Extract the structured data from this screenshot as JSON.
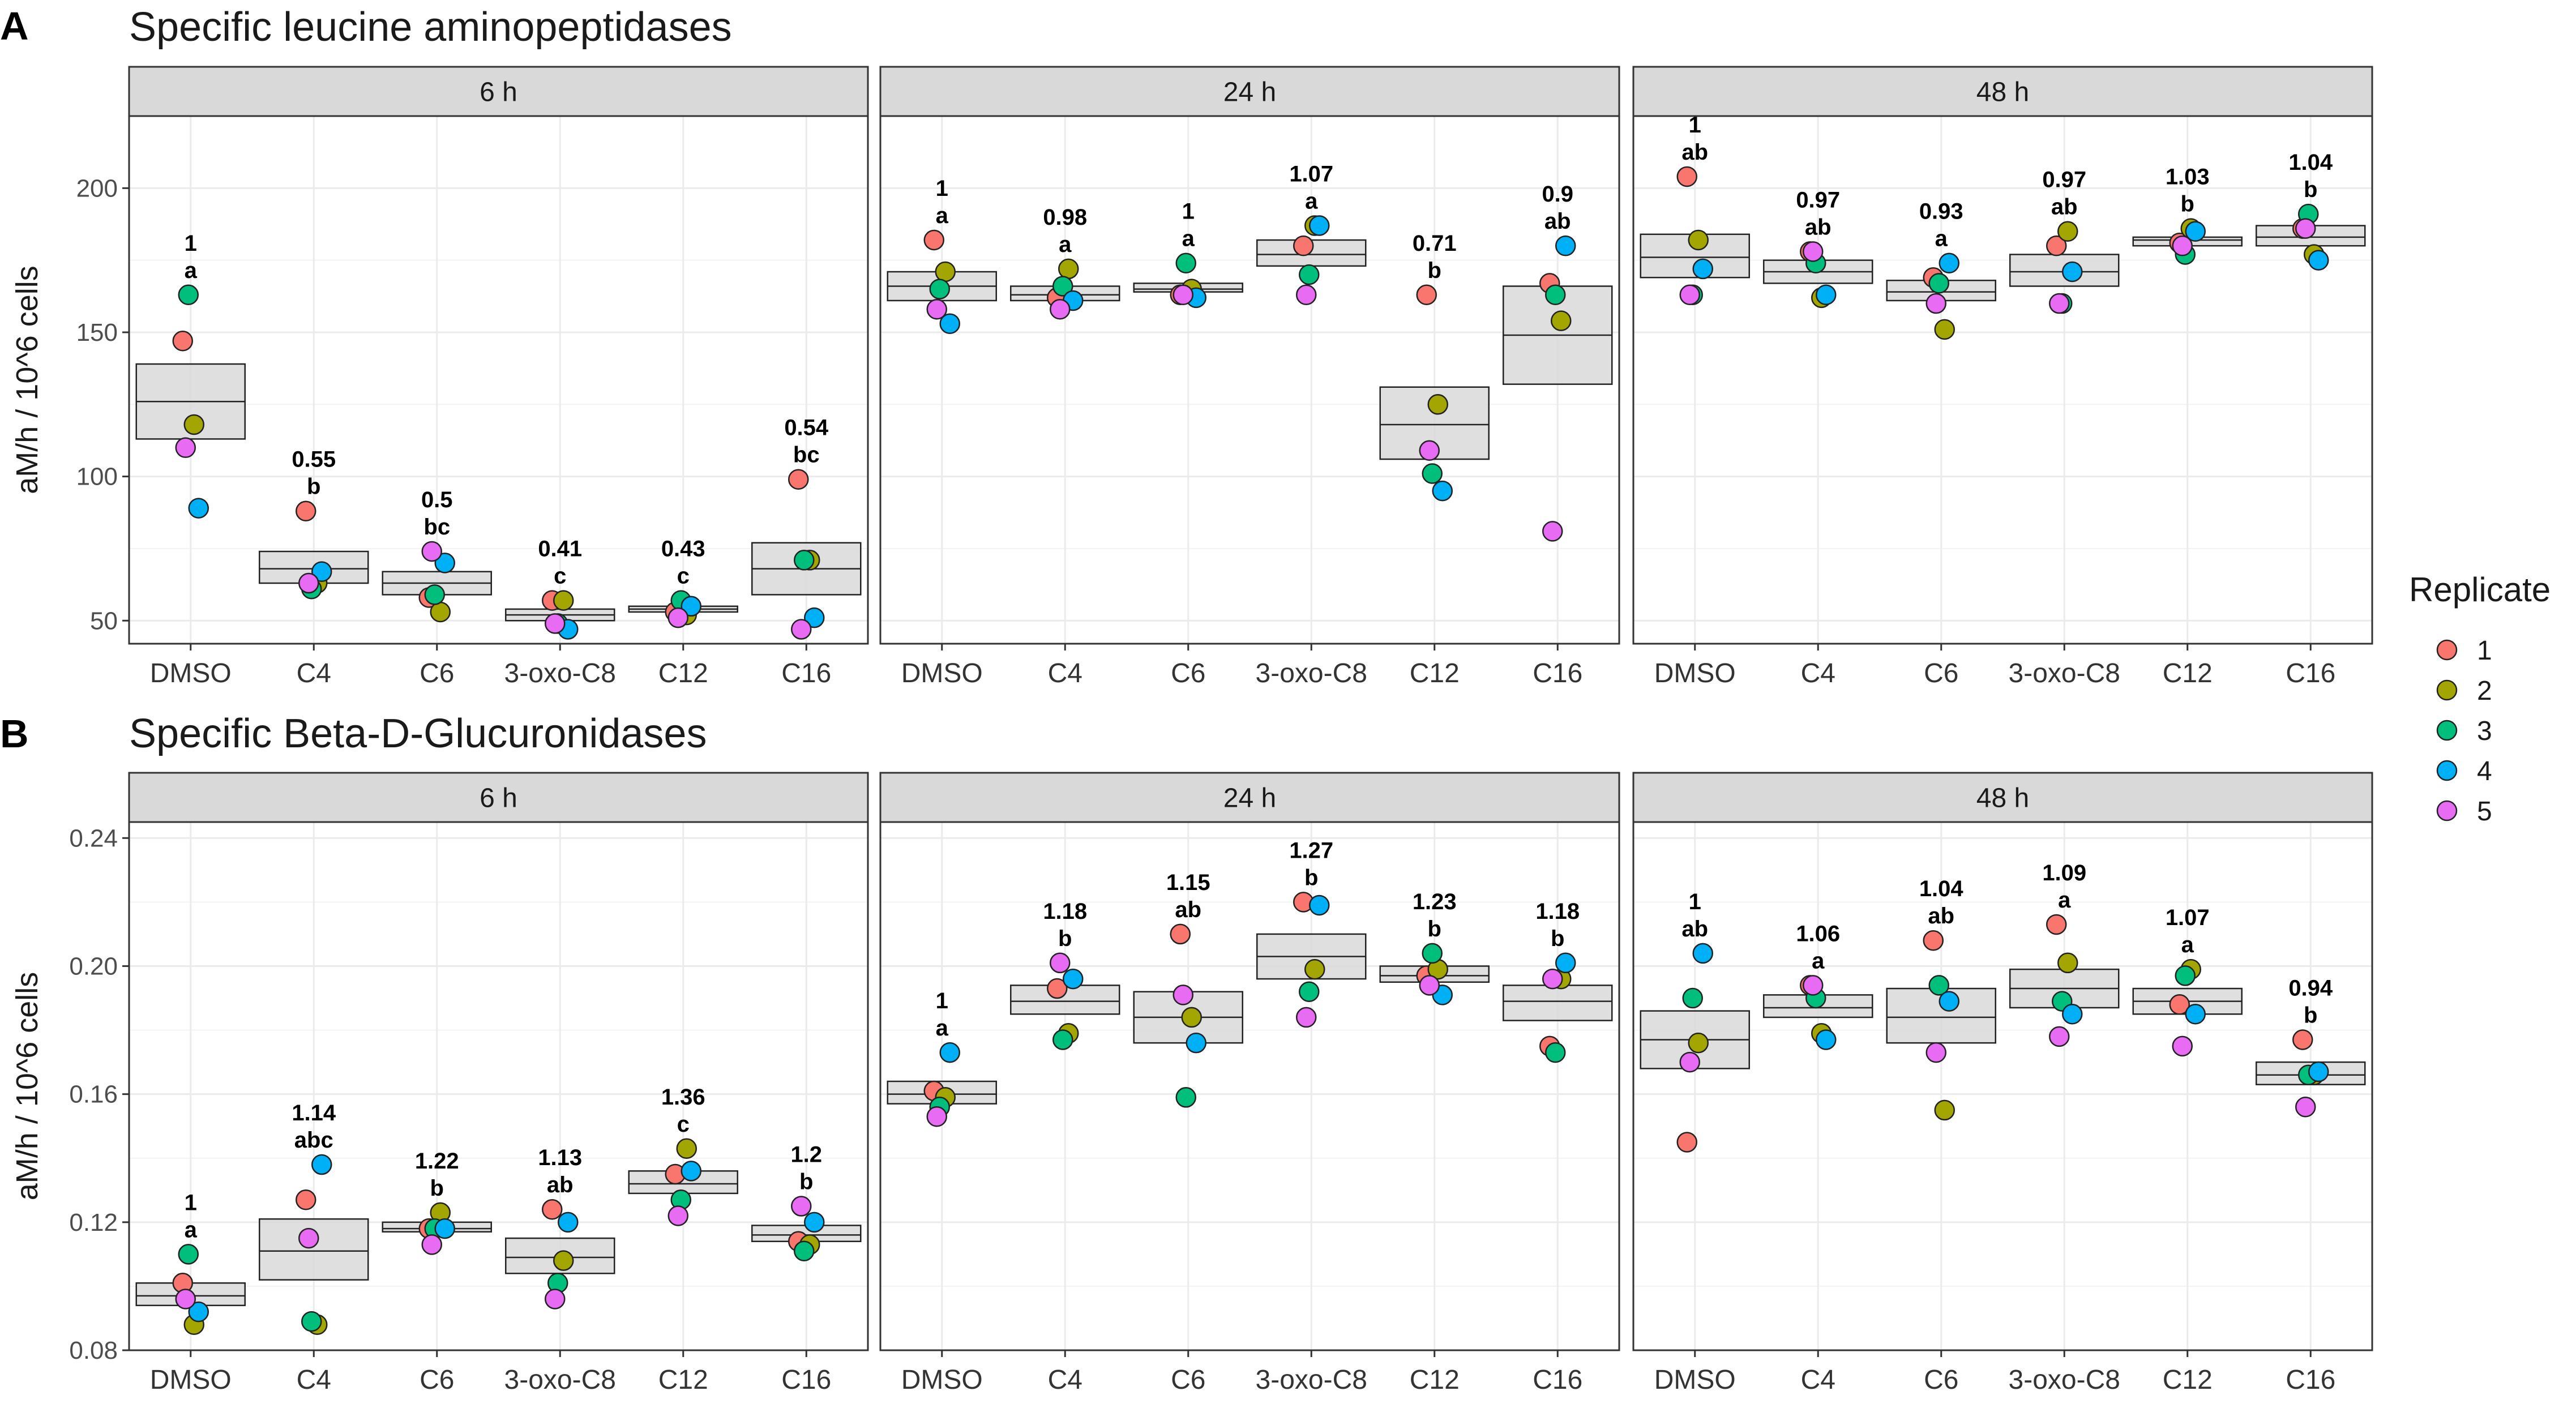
{
  "legend": {
    "title": "Replicate",
    "entries": [
      {
        "label": "1",
        "color": "#F8766D"
      },
      {
        "label": "2",
        "color": "#A3A500"
      },
      {
        "label": "3",
        "color": "#00BF7D"
      },
      {
        "label": "4",
        "color": "#00B0F6"
      },
      {
        "label": "5",
        "color": "#E76BF3"
      }
    ]
  },
  "chart_data": [
    {
      "panel_letter": "A",
      "type": "scatter",
      "title": "Specific leucine aminopeptidases",
      "ylabel": "aM/h / 10^6 cells",
      "ylim": [
        42,
        225
      ],
      "yticks": [
        50,
        100,
        150,
        200
      ],
      "ytick_labels": [
        "50",
        "100",
        "150",
        "200"
      ],
      "categories": [
        "DMSO",
        "C4",
        "C6",
        "3-oxo-C8",
        "C12",
        "C16"
      ],
      "facets": [
        {
          "label": "6 h",
          "groups": [
            {
              "category": "DMSO",
              "mean": 126,
              "se": [
                113,
                139
              ],
              "points": [
                147,
                118,
                163,
                89,
                110
              ],
              "annotation": [
                "1",
                "a"
              ]
            },
            {
              "category": "C4",
              "mean": 68,
              "se": [
                63,
                74
              ],
              "points": [
                88,
                63,
                61,
                67,
                63
              ],
              "annotation": [
                "0.55",
                "b"
              ]
            },
            {
              "category": "C6",
              "mean": 63,
              "se": [
                59,
                67
              ],
              "points": [
                58,
                53,
                59,
                70,
                74
              ],
              "annotation": [
                "0.5",
                "bc"
              ]
            },
            {
              "category": "3-oxo-C8",
              "mean": 52,
              "se": [
                50,
                54
              ],
              "points": [
                57,
                57,
                49,
                47,
                49
              ],
              "annotation": [
                "0.41",
                "c"
              ]
            },
            {
              "category": "C12",
              "mean": 54,
              "se": [
                53,
                55
              ],
              "points": [
                53,
                52,
                57,
                55,
                51
              ],
              "annotation": [
                "0.43",
                "c"
              ]
            },
            {
              "category": "C16",
              "mean": 68,
              "se": [
                59,
                77
              ],
              "points": [
                99,
                71,
                71,
                51,
                47
              ],
              "annotation": [
                "0.54",
                "bc"
              ]
            }
          ]
        },
        {
          "label": "24 h",
          "groups": [
            {
              "category": "DMSO",
              "mean": 166,
              "se": [
                161,
                171
              ],
              "points": [
                182,
                171,
                165,
                153,
                158
              ],
              "annotation": [
                "1",
                "a"
              ]
            },
            {
              "category": "C4",
              "mean": 163,
              "se": [
                161,
                166
              ],
              "points": [
                162,
                172,
                166,
                161,
                158
              ],
              "annotation": [
                "0.98",
                "a"
              ]
            },
            {
              "category": "C6",
              "mean": 165,
              "se": [
                164,
                167
              ],
              "points": [
                163,
                165,
                174,
                162,
                163
              ],
              "annotation": [
                "1",
                "a"
              ]
            },
            {
              "category": "3-oxo-C8",
              "mean": 177,
              "se": [
                173,
                182
              ],
              "points": [
                180,
                187,
                170,
                187,
                163
              ],
              "annotation": [
                "1.07",
                "a"
              ]
            },
            {
              "category": "C12",
              "mean": 118,
              "se": [
                106,
                131
              ],
              "points": [
                163,
                125,
                101,
                95,
                109
              ],
              "annotation": [
                "0.71",
                "b"
              ]
            },
            {
              "category": "C16",
              "mean": 149,
              "se": [
                132,
                166
              ],
              "points": [
                167,
                154,
                163,
                180,
                81
              ],
              "annotation": [
                "0.9",
                "ab"
              ]
            }
          ]
        },
        {
          "label": "48 h",
          "groups": [
            {
              "category": "DMSO",
              "mean": 176,
              "se": [
                169,
                184
              ],
              "points": [
                204,
                182,
                163,
                172,
                163
              ],
              "annotation": [
                "1",
                "ab"
              ]
            },
            {
              "category": "C4",
              "mean": 171,
              "se": [
                167,
                175
              ],
              "points": [
                178,
                162,
                174,
                163,
                178
              ],
              "annotation": [
                "0.97",
                "ab"
              ]
            },
            {
              "category": "C6",
              "mean": 164,
              "se": [
                161,
                168
              ],
              "points": [
                169,
                151,
                167,
                174,
                160
              ],
              "annotation": [
                "0.93",
                "a"
              ]
            },
            {
              "category": "3-oxo-C8",
              "mean": 171,
              "se": [
                166,
                177
              ],
              "points": [
                180,
                185,
                160,
                171,
                160
              ],
              "annotation": [
                "0.97",
                "ab"
              ]
            },
            {
              "category": "C12",
              "mean": 182,
              "se": [
                180,
                183
              ],
              "points": [
                181,
                186,
                177,
                185,
                180
              ],
              "annotation": [
                "1.03",
                "b"
              ]
            },
            {
              "category": "C16",
              "mean": 183,
              "se": [
                180,
                187
              ],
              "points": [
                186,
                177,
                191,
                175,
                186
              ],
              "annotation": [
                "1.04",
                "b"
              ]
            }
          ]
        }
      ]
    },
    {
      "panel_letter": "B",
      "type": "scatter",
      "title": "Specific Beta-D-Glucuronidases",
      "ylabel": "aM/h / 10^6 cells",
      "ylim": [
        0.08,
        0.245
      ],
      "yticks": [
        0.08,
        0.12,
        0.16,
        0.2,
        0.24
      ],
      "ytick_labels": [
        "0.08",
        "0.12",
        "0.16",
        "0.20",
        "0.24"
      ],
      "categories": [
        "DMSO",
        "C4",
        "C6",
        "3-oxo-C8",
        "C12",
        "C16"
      ],
      "facets": [
        {
          "label": "6 h",
          "groups": [
            {
              "category": "DMSO",
              "mean": 0.097,
              "se": [
                0.094,
                0.101
              ],
              "points": [
                0.101,
                0.088,
                0.11,
                0.092,
                0.096
              ],
              "annotation": [
                "1",
                "a"
              ]
            },
            {
              "category": "C4",
              "mean": 0.111,
              "se": [
                0.102,
                0.121
              ],
              "points": [
                0.127,
                0.088,
                0.089,
                0.138,
                0.115
              ],
              "annotation": [
                "1.14",
                "abc"
              ]
            },
            {
              "category": "C6",
              "mean": 0.118,
              "se": [
                0.117,
                0.12
              ],
              "points": [
                0.118,
                0.123,
                0.118,
                0.118,
                0.113
              ],
              "annotation": [
                "1.22",
                "b"
              ]
            },
            {
              "category": "3-oxo-C8",
              "mean": 0.109,
              "se": [
                0.104,
                0.115
              ],
              "points": [
                0.124,
                0.108,
                0.101,
                0.12,
                0.096
              ],
              "annotation": [
                "1.13",
                "ab"
              ]
            },
            {
              "category": "C12",
              "mean": 0.132,
              "se": [
                0.129,
                0.136
              ],
              "points": [
                0.135,
                0.143,
                0.127,
                0.136,
                0.122
              ],
              "annotation": [
                "1.36",
                "c"
              ]
            },
            {
              "category": "C16",
              "mean": 0.116,
              "se": [
                0.114,
                0.119
              ],
              "points": [
                0.114,
                0.113,
                0.111,
                0.12,
                0.125
              ],
              "annotation": [
                "1.2",
                "b"
              ]
            }
          ]
        },
        {
          "label": "24 h",
          "groups": [
            {
              "category": "DMSO",
              "mean": 0.16,
              "se": [
                0.157,
                0.164
              ],
              "points": [
                0.161,
                0.159,
                0.156,
                0.173,
                0.153
              ],
              "annotation": [
                "1",
                "a"
              ]
            },
            {
              "category": "C4",
              "mean": 0.189,
              "se": [
                0.185,
                0.194
              ],
              "points": [
                0.193,
                0.179,
                0.177,
                0.196,
                0.201
              ],
              "annotation": [
                "1.18",
                "b"
              ]
            },
            {
              "category": "C6",
              "mean": 0.184,
              "se": [
                0.176,
                0.192
              ],
              "points": [
                0.21,
                0.184,
                0.159,
                0.176,
                0.191
              ],
              "annotation": [
                "1.15",
                "ab"
              ]
            },
            {
              "category": "3-oxo-C8",
              "mean": 0.203,
              "se": [
                0.196,
                0.21
              ],
              "points": [
                0.22,
                0.199,
                0.192,
                0.219,
                0.184
              ],
              "annotation": [
                "1.27",
                "b"
              ]
            },
            {
              "category": "C12",
              "mean": 0.197,
              "se": [
                0.195,
                0.2
              ],
              "points": [
                0.197,
                0.199,
                0.204,
                0.191,
                0.194
              ],
              "annotation": [
                "1.23",
                "b"
              ]
            },
            {
              "category": "C16",
              "mean": 0.189,
              "se": [
                0.183,
                0.194
              ],
              "points": [
                0.175,
                0.196,
                0.173,
                0.201,
                0.196
              ],
              "annotation": [
                "1.18",
                "b"
              ]
            }
          ]
        },
        {
          "label": "48 h",
          "groups": [
            {
              "category": "DMSO",
              "mean": 0.177,
              "se": [
                0.168,
                0.186
              ],
              "points": [
                0.145,
                0.176,
                0.19,
                0.204,
                0.17
              ],
              "annotation": [
                "1",
                "ab"
              ]
            },
            {
              "category": "C4",
              "mean": 0.187,
              "se": [
                0.184,
                0.191
              ],
              "points": [
                0.194,
                0.179,
                0.19,
                0.177,
                0.194
              ],
              "annotation": [
                "1.06",
                "a"
              ]
            },
            {
              "category": "C6",
              "mean": 0.184,
              "se": [
                0.176,
                0.193
              ],
              "points": [
                0.208,
                0.155,
                0.194,
                0.189,
                0.173
              ],
              "annotation": [
                "1.04",
                "ab"
              ]
            },
            {
              "category": "3-oxo-C8",
              "mean": 0.193,
              "se": [
                0.187,
                0.199
              ],
              "points": [
                0.213,
                0.201,
                0.189,
                0.185,
                0.178
              ],
              "annotation": [
                "1.09",
                "a"
              ]
            },
            {
              "category": "C12",
              "mean": 0.189,
              "se": [
                0.185,
                0.193
              ],
              "points": [
                0.188,
                0.199,
                0.197,
                0.185,
                0.175
              ],
              "annotation": [
                "1.07",
                "a"
              ]
            },
            {
              "category": "C16",
              "mean": 0.166,
              "se": [
                0.163,
                0.17
              ],
              "points": [
                0.177,
                0.166,
                0.166,
                0.167,
                0.156
              ],
              "annotation": [
                "0.94",
                "b"
              ]
            }
          ]
        }
      ]
    }
  ]
}
